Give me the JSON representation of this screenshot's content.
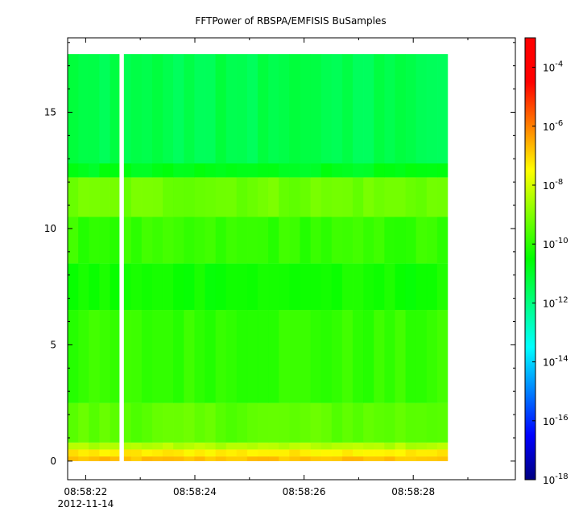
{
  "chart_data": {
    "type": "heatmap",
    "title": "FFTPower of RBSPA/EMFISIS  BuSamples",
    "xlabel": "",
    "ylabel": "",
    "x_range": [
      "08:58:21.67",
      "08:58:29.87"
    ],
    "y_range": [
      -0.8,
      18.2
    ],
    "x_ticks": [
      {
        "label": "08:58:22",
        "value": "08:58:22"
      },
      {
        "label": "08:58:24",
        "value": "08:58:24"
      },
      {
        "label": "08:58:26",
        "value": "08:58:26"
      },
      {
        "label": "08:58:28",
        "value": "08:58:28"
      }
    ],
    "x_date_label": "2012-11-14",
    "x_minor_ticks": [
      "08:58:23",
      "08:58:25",
      "08:58:27",
      "08:58:29"
    ],
    "y_ticks": [
      0,
      5,
      10,
      15
    ],
    "y_minor_ticks": [
      1,
      2,
      3,
      4,
      6,
      7,
      8,
      9,
      11,
      12,
      13,
      14,
      16,
      17,
      18
    ],
    "data_extent": {
      "x_start": "08:58:21.67",
      "x_end": "08:58:28.63",
      "y_min": 0,
      "y_max": 17.5
    },
    "gap": {
      "x_start": "08:58:22.62",
      "x_end": "08:58:22.70"
    },
    "colorbar": {
      "scale": "log",
      "range": [
        1e-18,
        0.001
      ],
      "tick_labels": [
        {
          "base": "10",
          "exp": "-4",
          "value": 0.0001
        },
        {
          "base": "10",
          "exp": "-6",
          "value": 1e-06
        },
        {
          "base": "10",
          "exp": "-8",
          "value": 1e-08
        },
        {
          "base": "10",
          "exp": "-10",
          "value": 1e-10
        },
        {
          "base": "10",
          "exp": "-12",
          "value": 1e-12
        },
        {
          "base": "10",
          "exp": "-14",
          "value": 1e-14
        },
        {
          "base": "10",
          "exp": "-16",
          "value": 1e-16
        },
        {
          "base": "10",
          "exp": "-18",
          "value": 1e-18
        }
      ],
      "colors": [
        "#00007f",
        "#0000ff",
        "#0080ff",
        "#00ffff",
        "#00ff80",
        "#00ff00",
        "#80ff00",
        "#ffff00",
        "#ff8000",
        "#ff0000",
        "#ff0000"
      ]
    },
    "power_bands": [
      {
        "y_from": 0,
        "y_to": 0.2,
        "log10_power": -6.8
      },
      {
        "y_from": 0.2,
        "y_to": 0.5,
        "log10_power": -7.3
      },
      {
        "y_from": 0.5,
        "y_to": 0.8,
        "log10_power": -8.4
      },
      {
        "y_from": 0.8,
        "y_to": 2.5,
        "log10_power": -9.4
      },
      {
        "y_from": 2.5,
        "y_to": 6.5,
        "log10_power": -9.9
      },
      {
        "y_from": 6.5,
        "y_to": 8.5,
        "log10_power": -10.3
      },
      {
        "y_from": 8.5,
        "y_to": 10.5,
        "log10_power": -9.9
      },
      {
        "y_from": 10.5,
        "y_to": 12.2,
        "log10_power": -9.2
      },
      {
        "y_from": 12.2,
        "y_to": 12.8,
        "log10_power": -10.8
      },
      {
        "y_from": 12.8,
        "y_to": 17.5,
        "log10_power": -11.4
      }
    ]
  }
}
